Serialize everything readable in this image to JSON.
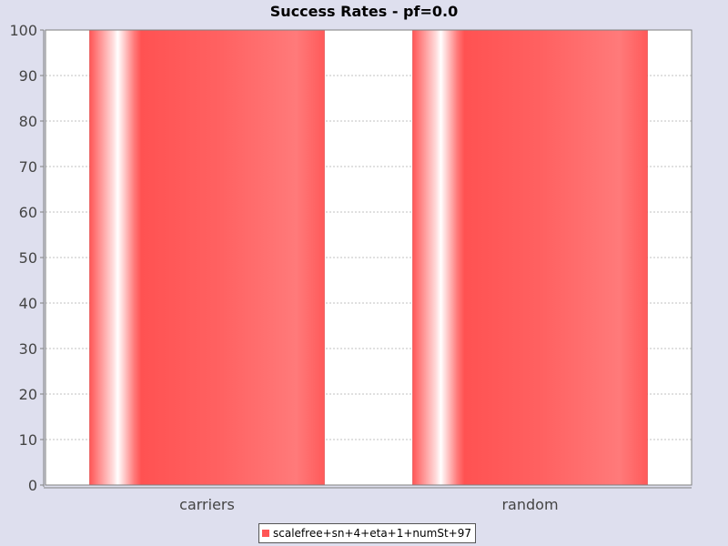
{
  "chart_data": {
    "type": "bar",
    "title": "Success Rates - pf=0.0",
    "xlabel": "",
    "ylabel": "",
    "categories": [
      "carriers",
      "random"
    ],
    "series": [
      {
        "name": "scalefree+sn+4+eta+1+numSt+97",
        "values": [
          100,
          100
        ],
        "color": "#ff5555"
      }
    ],
    "ylim": [
      0,
      100
    ],
    "yticks": [
      "0",
      "10",
      "20",
      "30",
      "40",
      "50",
      "60",
      "70",
      "80",
      "90",
      "100"
    ],
    "grid": true,
    "legend_position": "bottom-center"
  },
  "colors": {
    "background": "#dedfee",
    "plot_background": "#ffffff",
    "gridline": "#c0c0c0",
    "bar": "#ff5555",
    "bar_highlight": "#ffffff"
  }
}
